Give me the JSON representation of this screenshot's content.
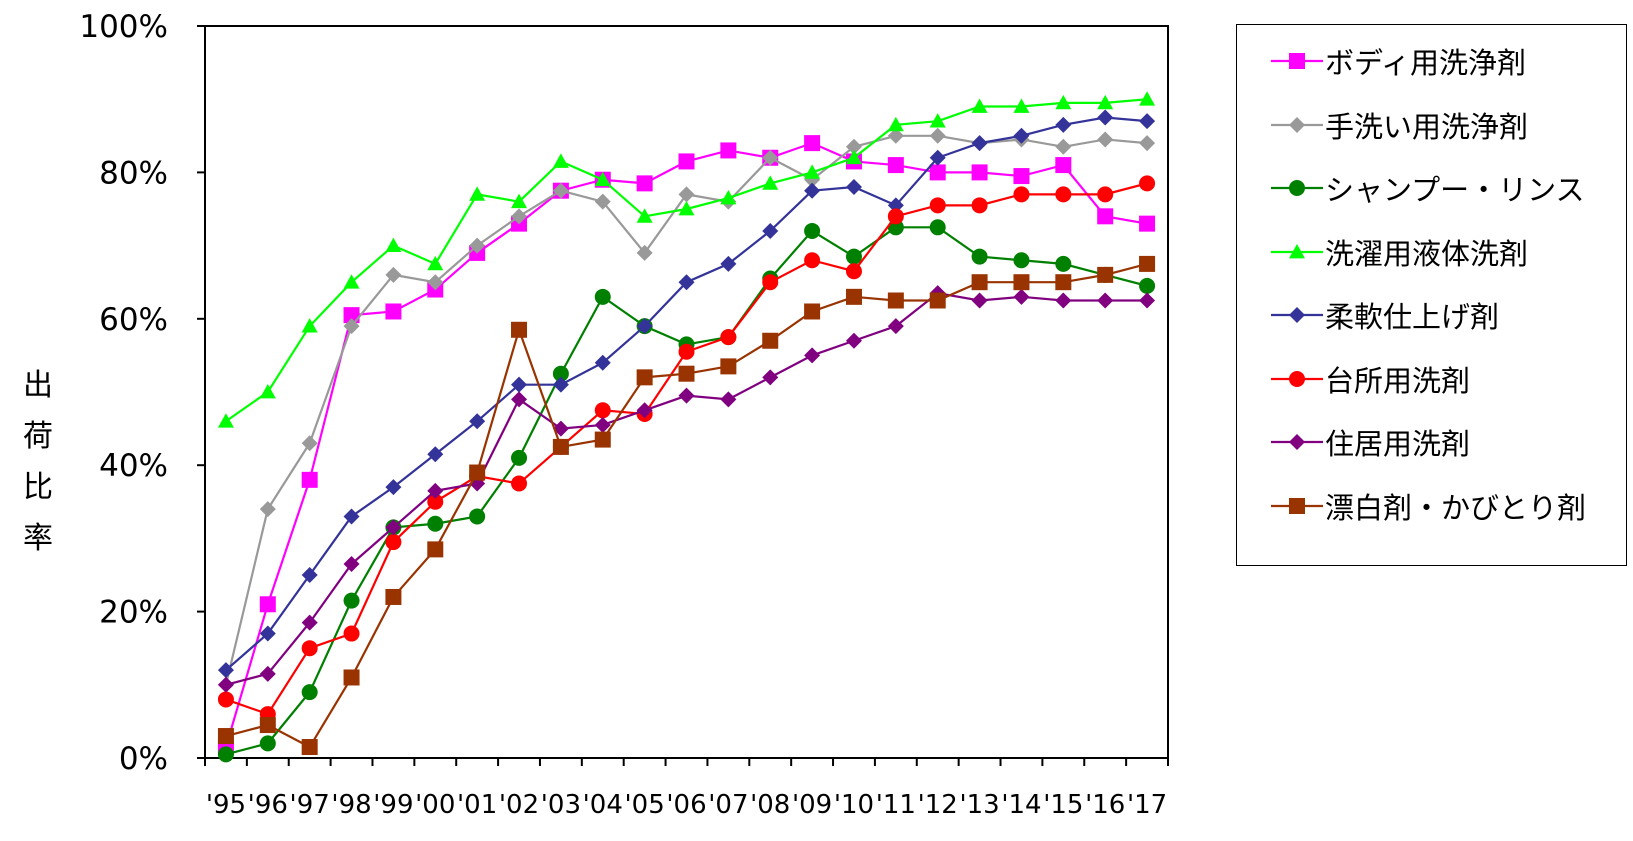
{
  "chart_data": {
    "type": "line",
    "title": "",
    "xlabel": "",
    "ylabel": "出荷比率",
    "ylim": [
      0,
      100
    ],
    "yticks": [
      "0%",
      "20%",
      "40%",
      "60%",
      "80%",
      "100%"
    ],
    "categories": [
      "'95",
      "'96",
      "'97",
      "'98",
      "'99",
      "'00",
      "'01",
      "'02",
      "'03",
      "'04",
      "'05",
      "'06",
      "'07",
      "'08",
      "'09",
      "'10",
      "'11",
      "'12",
      "'13",
      "'14",
      "'15",
      "'16",
      "'17"
    ],
    "legend_position": "right",
    "series": [
      {
        "name": "ボディ用洗浄剤",
        "color": "#ff00ff",
        "marker": "square",
        "values": [
          1.5,
          21,
          38,
          60.5,
          61,
          64,
          69,
          73,
          77.5,
          79,
          78.5,
          81.5,
          83,
          82,
          84,
          81.5,
          81,
          80,
          80,
          79.5,
          81,
          74,
          73
        ]
      },
      {
        "name": "手洗い用洗浄剤",
        "color": "#999999",
        "marker": "diamond",
        "values": [
          10,
          34,
          43,
          59,
          66,
          65,
          70,
          74,
          77.5,
          76,
          69,
          77,
          76,
          82,
          79,
          83.5,
          85,
          85,
          84,
          84.5,
          83.5,
          84.5,
          84
        ]
      },
      {
        "name": "シャンプー・リンス",
        "color": "#008000",
        "marker": "circle",
        "values": [
          0.5,
          2,
          9,
          21.5,
          31.5,
          32,
          33,
          41,
          52.5,
          63,
          59,
          56.5,
          57.5,
          65.5,
          72,
          68.5,
          72.5,
          72.5,
          68.5,
          68,
          67.5,
          66,
          64.5
        ]
      },
      {
        "name": "洗濯用液体洗剤",
        "color": "#00ff00",
        "marker": "triangle",
        "values": [
          46,
          50,
          59,
          65,
          70,
          67.5,
          77,
          76,
          81.5,
          79,
          74,
          75,
          76.5,
          78.5,
          80,
          82,
          86.5,
          87,
          89,
          89,
          89.5,
          89.5,
          90
        ]
      },
      {
        "name": "柔軟仕上げ剤",
        "color": "#333399",
        "marker": "diamond",
        "values": [
          12,
          17,
          25,
          33,
          37,
          41.5,
          46,
          51,
          51,
          54,
          59,
          65,
          67.5,
          72,
          77.5,
          78,
          75.5,
          82,
          84,
          85,
          86.5,
          87.5,
          87
        ]
      },
      {
        "name": "台所用洗剤",
        "color": "#ff0000",
        "marker": "circle",
        "values": [
          8,
          6,
          15,
          17,
          29.5,
          35,
          38.5,
          37.5,
          42.5,
          47.5,
          47,
          55.5,
          57.5,
          65,
          68,
          66.5,
          74,
          75.5,
          75.5,
          77,
          77,
          77,
          78.5
        ]
      },
      {
        "name": "住居用洗剤",
        "color": "#800080",
        "marker": "diamond",
        "values": [
          10,
          11.5,
          18.5,
          26.5,
          31.5,
          36.5,
          37.5,
          49,
          45,
          45.5,
          47.5,
          49.5,
          49,
          52,
          55,
          57,
          59,
          63.5,
          62.5,
          63,
          62.5,
          62.5,
          62.5
        ]
      },
      {
        "name": "漂白剤・かびとり剤",
        "color": "#993300",
        "marker": "square",
        "values": [
          3,
          4.5,
          1.5,
          11,
          22,
          28.5,
          39,
          58.5,
          42.5,
          43.5,
          52,
          52.5,
          53.5,
          57,
          61,
          63,
          62.5,
          62.5,
          65,
          65,
          65,
          66,
          67.5
        ]
      }
    ]
  }
}
